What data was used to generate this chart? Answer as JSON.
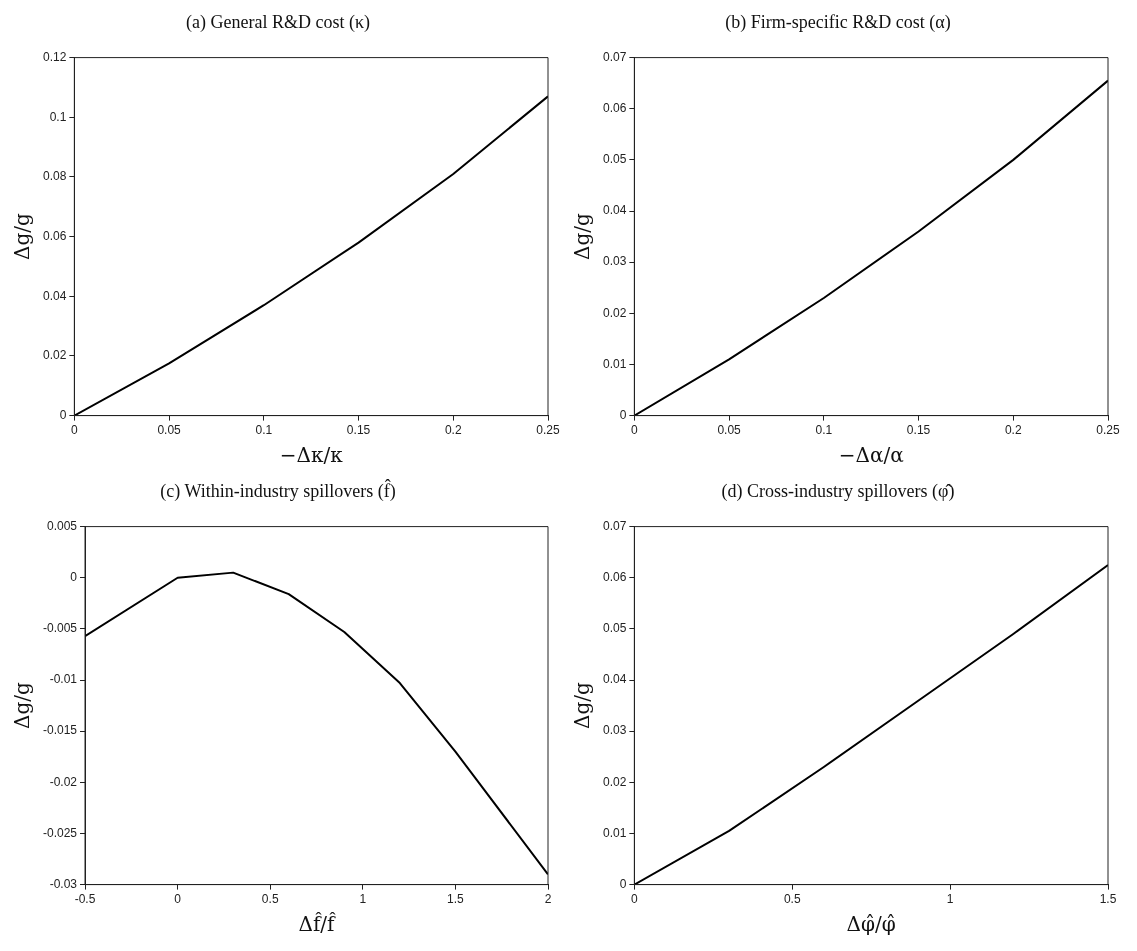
{
  "chart_data": [
    {
      "type": "line",
      "title": "(a) General R&D cost (κ)",
      "xlabel": "−Δκ/κ",
      "ylabel": "Δg/g",
      "x": [
        0,
        0.05,
        0.1,
        0.15,
        0.2,
        0.25
      ],
      "values": [
        0,
        0.0175,
        0.037,
        0.058,
        0.081,
        0.107
      ],
      "color": "#000000",
      "xlim": [
        0,
        0.25
      ],
      "xticks": [
        0,
        0.05,
        0.1,
        0.15,
        0.2,
        0.25
      ],
      "ylim": [
        0,
        0.12
      ],
      "yticks": [
        0,
        0.02,
        0.04,
        0.06,
        0.08,
        0.1,
        0.12
      ]
    },
    {
      "type": "line",
      "title": "(b) Firm-specific R&D cost (α)",
      "xlabel": "−Δα/α",
      "ylabel": "Δg/g",
      "x": [
        0,
        0.05,
        0.1,
        0.15,
        0.2,
        0.25
      ],
      "values": [
        0,
        0.011,
        0.023,
        0.036,
        0.05,
        0.0655
      ],
      "color": "#000000",
      "xlim": [
        0,
        0.25
      ],
      "xticks": [
        0,
        0.05,
        0.1,
        0.15,
        0.2,
        0.25
      ],
      "ylim": [
        0,
        0.07
      ],
      "yticks": [
        0,
        0.01,
        0.02,
        0.03,
        0.04,
        0.05,
        0.06,
        0.07
      ]
    },
    {
      "type": "line",
      "title": "(c) Within-industry spillovers (f̂)",
      "xlabel": "Δf̂/f̂",
      "ylabel": "Δg/g",
      "x": [
        -0.5,
        0,
        0.3,
        0.6,
        0.9,
        1.2,
        1.5,
        2
      ],
      "values": [
        -0.0057,
        0,
        0.0005,
        -0.0016,
        -0.0053,
        -0.0103,
        -0.017,
        -0.029
      ],
      "color": "#000000",
      "xlim": [
        -0.5,
        2
      ],
      "xticks": [
        -0.5,
        0,
        0.5,
        1,
        1.5,
        2
      ],
      "ylim": [
        -0.03,
        0.005
      ],
      "yticks": [
        -0.03,
        -0.025,
        -0.02,
        -0.015,
        -0.01,
        -0.005,
        0,
        0.005
      ]
    },
    {
      "type": "line",
      "title": "(d) Cross-industry spillovers (φ̂)",
      "xlabel": "Δφ̂/φ̂",
      "ylabel": "Δg/g",
      "x": [
        0,
        0.3,
        0.6,
        0.9,
        1.2,
        1.5
      ],
      "values": [
        0,
        0.0105,
        0.023,
        0.036,
        0.049,
        0.0625
      ],
      "color": "#000000",
      "xlim": [
        0,
        1.5
      ],
      "xticks": [
        0,
        0.5,
        1,
        1.5
      ],
      "ylim": [
        0,
        0.07
      ],
      "yticks": [
        0,
        0.01,
        0.02,
        0.03,
        0.04,
        0.05,
        0.06,
        0.07
      ]
    }
  ]
}
